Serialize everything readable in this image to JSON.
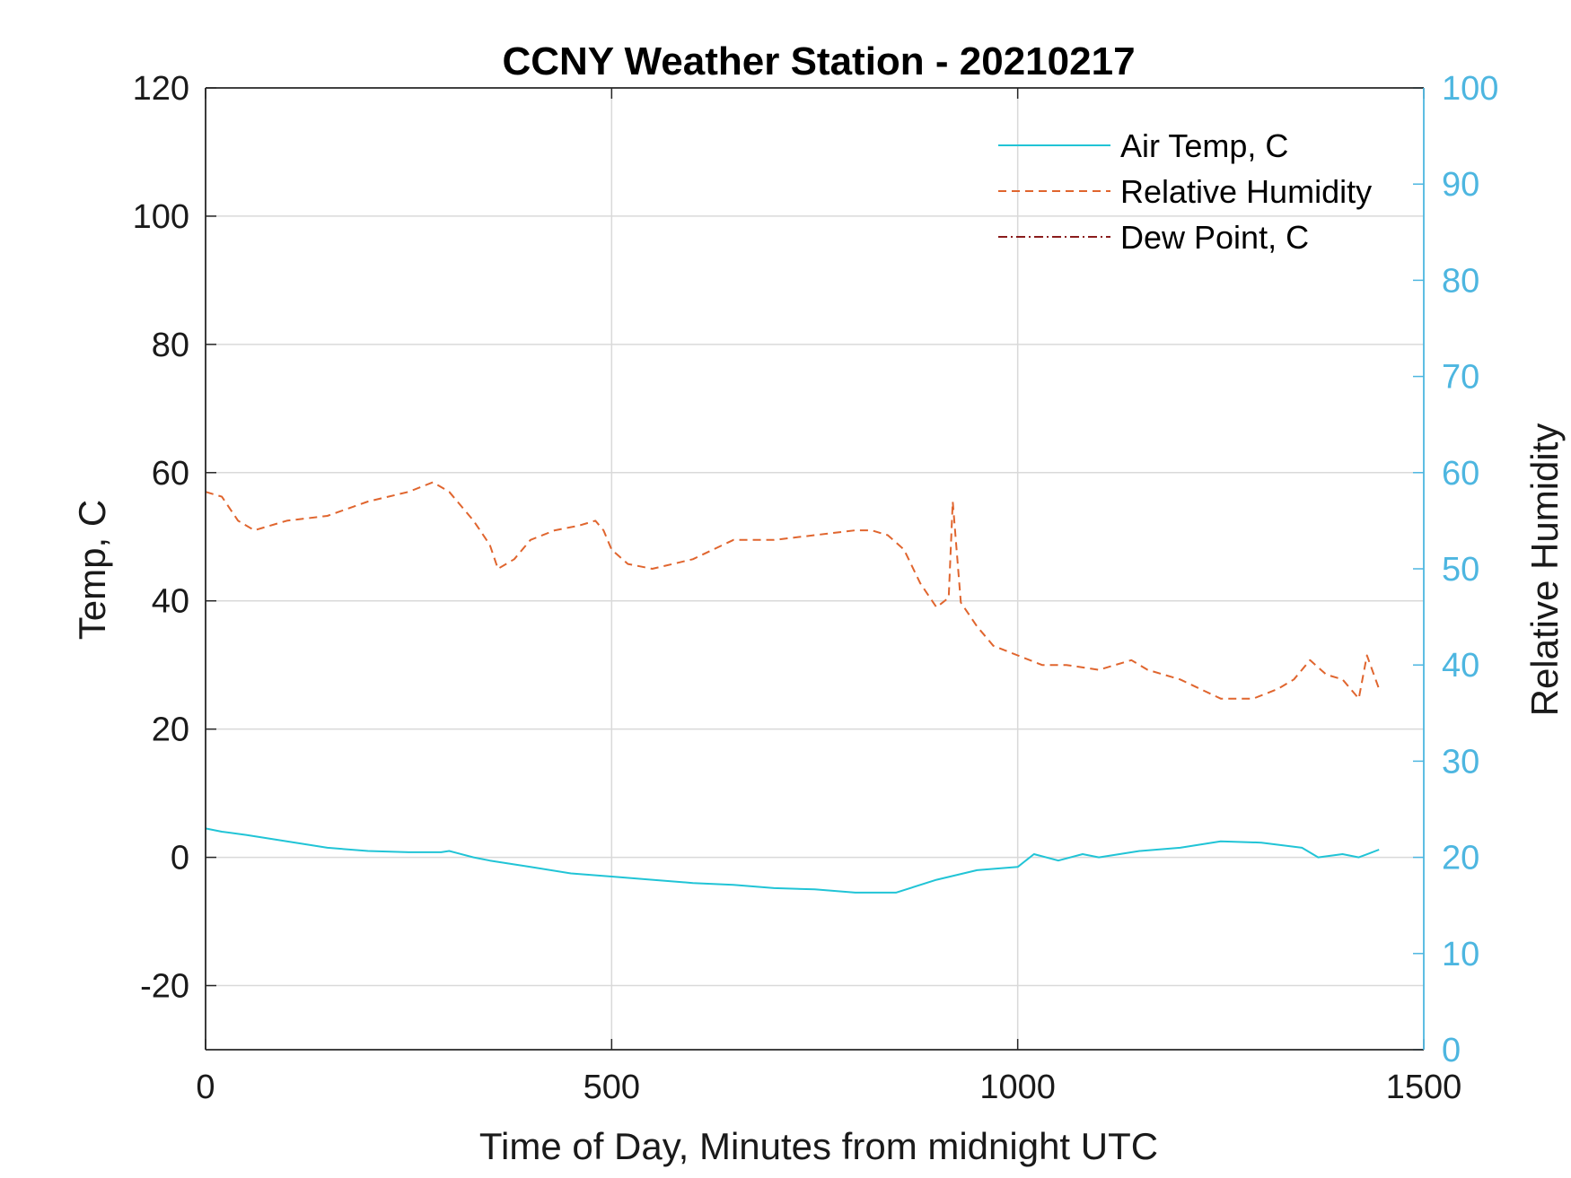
{
  "chart_data": {
    "type": "line",
    "title": "CCNY Weather Station - 20210217",
    "xlabel": "Time of Day, Minutes from midnight UTC",
    "ylabel_left": "Temp, C",
    "ylabel_right": "Relative Humidity",
    "xlim": [
      0,
      1500
    ],
    "ylim_left": [
      -30,
      120
    ],
    "ylim_right": [
      0,
      100
    ],
    "x_ticks": [
      "0",
      "500",
      "1000",
      "1500"
    ],
    "y_ticks_left": [
      "120",
      "100",
      "80",
      "60",
      "40",
      "20",
      "0",
      "-20"
    ],
    "y_ticks_right": [
      "100",
      "90",
      "80",
      "70",
      "60",
      "50",
      "40",
      "30",
      "20",
      "10",
      "0"
    ],
    "grid": true,
    "legend_position": "top-right",
    "colors": {
      "air_temp": "#21c4d6",
      "humidity": "#e0652e",
      "dew_point": "#8a1c1c",
      "right_axis": "#4db6e0",
      "grid": "#d9d9d9",
      "axis": "#262626"
    },
    "series": [
      {
        "name": "Air Temp, C",
        "axis": "left",
        "style": "solid",
        "x": [
          0,
          20,
          50,
          100,
          150,
          200,
          250,
          290,
          300,
          330,
          350,
          400,
          450,
          500,
          550,
          600,
          650,
          700,
          750,
          800,
          850,
          900,
          950,
          1000,
          1020,
          1050,
          1080,
          1100,
          1150,
          1200,
          1250,
          1300,
          1350,
          1370,
          1400,
          1420,
          1445
        ],
        "y": [
          4.5,
          4.0,
          3.5,
          2.5,
          1.5,
          1.0,
          0.8,
          0.8,
          1.0,
          0,
          -0.5,
          -1.5,
          -2.5,
          -3.0,
          -3.5,
          -4.0,
          -4.3,
          -4.8,
          -5.0,
          -5.5,
          -5.5,
          -3.5,
          -2.0,
          -1.5,
          0.5,
          -0.5,
          0.5,
          0,
          1.0,
          1.5,
          2.5,
          2.3,
          1.5,
          0,
          0.5,
          0,
          1.2
        ]
      },
      {
        "name": "Relative Humidity",
        "axis": "right",
        "style": "dashed",
        "x": [
          0,
          20,
          40,
          60,
          100,
          150,
          200,
          250,
          280,
          300,
          330,
          350,
          360,
          380,
          400,
          430,
          460,
          480,
          490,
          500,
          520,
          550,
          600,
          650,
          700,
          750,
          800,
          820,
          840,
          860,
          880,
          900,
          915,
          920,
          930,
          950,
          970,
          1000,
          1030,
          1060,
          1100,
          1140,
          1160,
          1200,
          1250,
          1290,
          1320,
          1340,
          1360,
          1380,
          1400,
          1420,
          1430,
          1445
        ],
        "y": [
          58,
          57.5,
          55,
          54,
          55,
          55.5,
          57,
          58,
          59,
          58,
          55,
          52.5,
          50,
          51,
          53,
          54,
          54.5,
          55,
          54,
          52,
          50.5,
          50,
          51,
          53,
          53,
          53.5,
          54,
          54,
          53.5,
          52,
          48.5,
          46,
          47,
          57,
          46.5,
          44,
          42,
          41,
          40,
          40,
          39.5,
          40.5,
          39.5,
          38.5,
          36.5,
          36.5,
          37.5,
          38.5,
          40.5,
          39,
          38.5,
          36.5,
          41,
          37.5
        ]
      },
      {
        "name": "Dew Point, C",
        "axis": "left",
        "style": "dash-dot",
        "x": [],
        "y": []
      }
    ]
  }
}
